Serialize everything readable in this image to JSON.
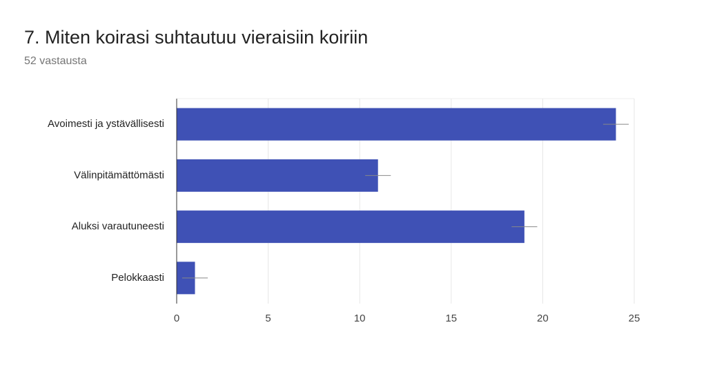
{
  "chart_data": {
    "type": "bar",
    "orientation": "horizontal",
    "title": "7. Miten koirasi suhtautuu vieraisiin koiriin",
    "subtitle": "52 vastausta",
    "categories": [
      "Avoimesti ja ystävällisesti",
      "Välinpitämättömästi",
      "Aluksi varautuneesti",
      "Pelokkaasti"
    ],
    "values": [
      24,
      11,
      19,
      1
    ],
    "errors": [
      0.7,
      0.7,
      0.7,
      0.7
    ],
    "color": "#3f51b5",
    "xlim": [
      0,
      25
    ],
    "xticks": [
      0,
      5,
      10,
      15,
      20,
      25
    ],
    "grid": true
  }
}
